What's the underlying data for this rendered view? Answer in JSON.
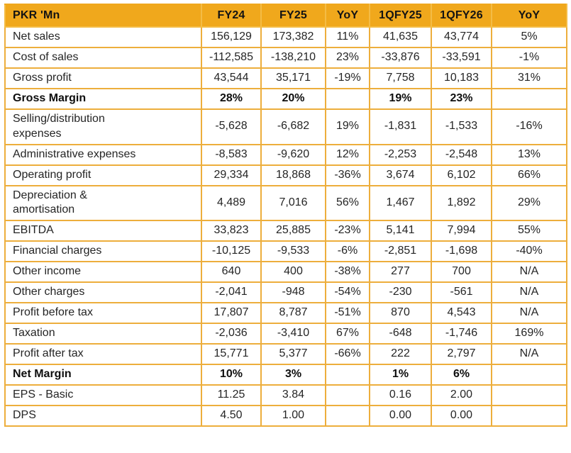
{
  "colors": {
    "header_bg": "#F0A81C",
    "grid_border": "#EDAE3C",
    "header_separator": "#F4BC45",
    "body_text": "#252525"
  },
  "chart_data": {
    "type": "table",
    "title": "Financial results table (PKR 'Mn)",
    "legend_position": "none",
    "grid": true,
    "columns": [
      "PKR 'Mn",
      "FY24",
      "FY25",
      "YoY",
      "1QFY25",
      "1QFY26",
      "YoY"
    ],
    "rows": [
      {
        "label": "Net sales",
        "bold": false,
        "values": [
          "156,129",
          "173,382",
          "11%",
          "41,635",
          "43,774",
          "5%"
        ]
      },
      {
        "label": "Cost of sales",
        "bold": false,
        "values": [
          "-112,585",
          "-138,210",
          "23%",
          "-33,876",
          "-33,591",
          "-1%"
        ]
      },
      {
        "label": "Gross profit",
        "bold": false,
        "values": [
          "43,544",
          "35,171",
          "-19%",
          "7,758",
          "10,183",
          "31%"
        ]
      },
      {
        "label": "Gross Margin",
        "bold": true,
        "values": [
          "28%",
          "20%",
          "",
          "19%",
          "23%",
          ""
        ]
      },
      {
        "label": "Selling/distribution\nexpenses",
        "bold": false,
        "values": [
          "-5,628",
          "-6,682",
          "19%",
          "-1,831",
          "-1,533",
          "-16%"
        ]
      },
      {
        "label": "Administrative expenses",
        "bold": false,
        "values": [
          "-8,583",
          "-9,620",
          "12%",
          "-2,253",
          "-2,548",
          "13%"
        ]
      },
      {
        "label": "Operating profit",
        "bold": false,
        "values": [
          "29,334",
          "18,868",
          "-36%",
          "3,674",
          "6,102",
          "66%"
        ]
      },
      {
        "label": "Depreciation &\namortisation",
        "bold": false,
        "values": [
          "4,489",
          "7,016",
          "56%",
          "1,467",
          "1,892",
          "29%"
        ]
      },
      {
        "label": "EBITDA",
        "bold": false,
        "values": [
          "33,823",
          "25,885",
          "-23%",
          "5,141",
          "7,994",
          "55%"
        ]
      },
      {
        "label": "Financial charges",
        "bold": false,
        "values": [
          "-10,125",
          "-9,533",
          "-6%",
          "-2,851",
          "-1,698",
          "-40%"
        ]
      },
      {
        "label": "Other income",
        "bold": false,
        "values": [
          "640",
          "400",
          "-38%",
          "277",
          "700",
          "N/A"
        ]
      },
      {
        "label": "Other charges",
        "bold": false,
        "values": [
          "-2,041",
          "-948",
          "-54%",
          "-230",
          "-561",
          "N/A"
        ]
      },
      {
        "label": "Profit before tax",
        "bold": false,
        "values": [
          "17,807",
          "8,787",
          "-51%",
          "870",
          "4,543",
          "N/A"
        ]
      },
      {
        "label": "Taxation",
        "bold": false,
        "values": [
          "-2,036",
          "-3,410",
          "67%",
          "-648",
          "-1,746",
          "169%"
        ]
      },
      {
        "label": "Profit after tax",
        "bold": false,
        "values": [
          "15,771",
          "5,377",
          "-66%",
          "222",
          "2,797",
          "N/A"
        ]
      },
      {
        "label": "Net Margin",
        "bold": true,
        "values": [
          "10%",
          "3%",
          "",
          "1%",
          "6%",
          ""
        ]
      },
      {
        "label": "EPS - Basic",
        "bold": false,
        "values": [
          "11.25",
          "3.84",
          "",
          "0.16",
          "2.00",
          ""
        ]
      },
      {
        "label": "DPS",
        "bold": false,
        "values": [
          "4.50",
          "1.00",
          "",
          "0.00",
          "0.00",
          ""
        ]
      }
    ]
  }
}
